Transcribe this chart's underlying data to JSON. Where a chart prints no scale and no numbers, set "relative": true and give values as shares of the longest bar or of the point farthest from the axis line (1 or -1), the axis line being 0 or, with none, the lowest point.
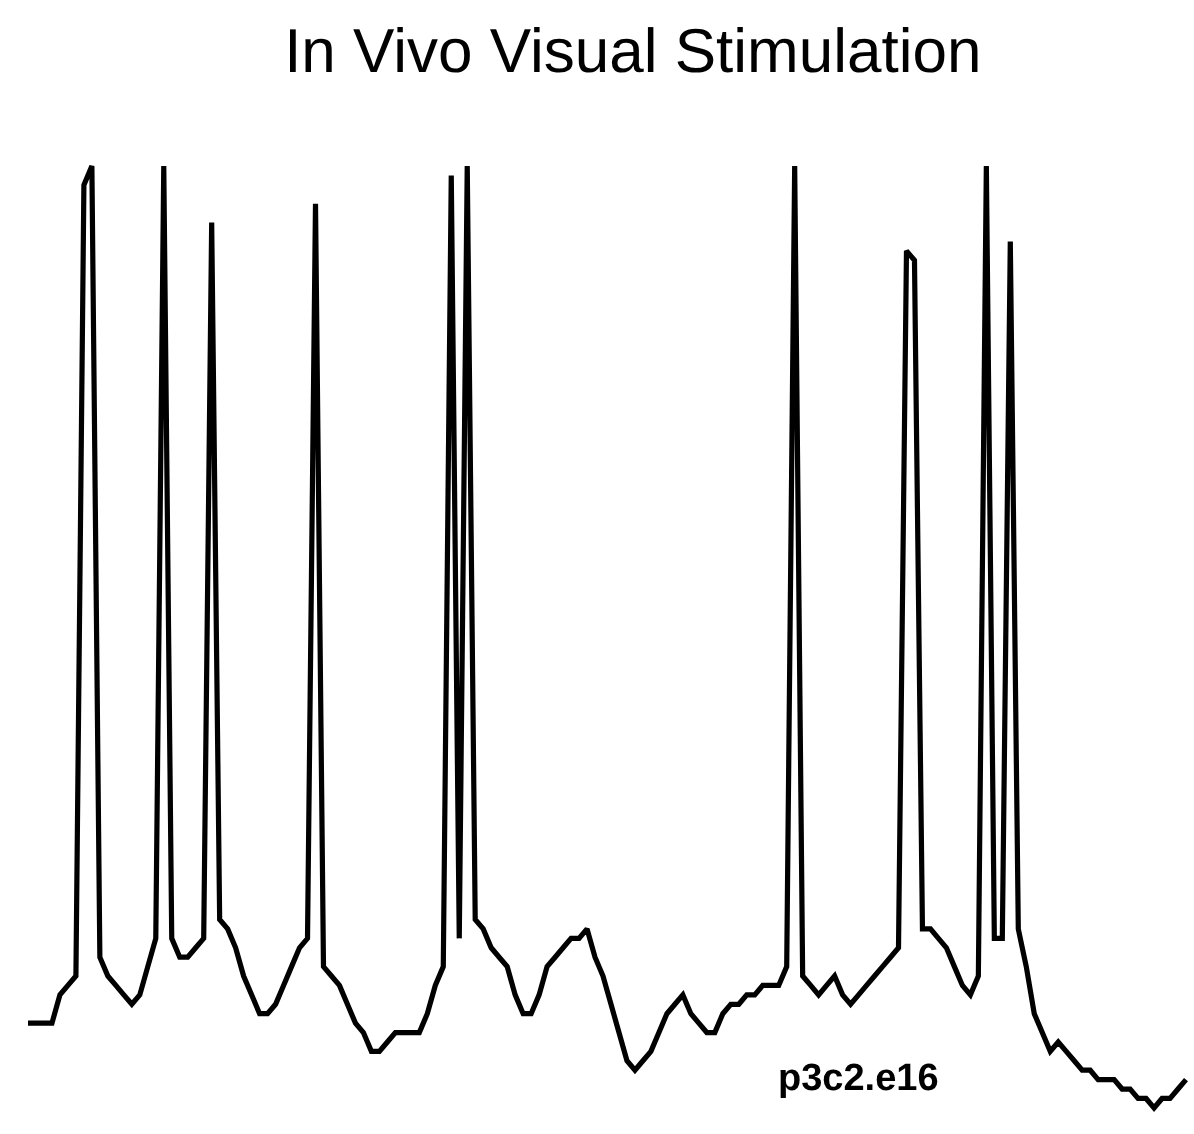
{
  "chart_data": {
    "type": "line",
    "title": "In Vivo Visual Stimulation",
    "relative": true,
    "categories": [
      null,
      null,
      null,
      null,
      null,
      null,
      null,
      null,
      null,
      null,
      null,
      null,
      null,
      null,
      null,
      null,
      null,
      null,
      null,
      null,
      null,
      null,
      null,
      null,
      null,
      null,
      null,
      null,
      null,
      null,
      null,
      null,
      null,
      null,
      null,
      null,
      null,
      null,
      null,
      null,
      null,
      null,
      null,
      null,
      null,
      null,
      null,
      null,
      null,
      null,
      null,
      null,
      null,
      null,
      null,
      null,
      null,
      null,
      null,
      null,
      null,
      null,
      null,
      null,
      null,
      null,
      null,
      null,
      null,
      null,
      null,
      null,
      null,
      null,
      null,
      null,
      null,
      null,
      null,
      null,
      null,
      null,
      null,
      null,
      null,
      null,
      null,
      null,
      null,
      null,
      null,
      null,
      null,
      null,
      null,
      null,
      null,
      null,
      null,
      null,
      null,
      null,
      null,
      null,
      null,
      null,
      null,
      null,
      null,
      null,
      null,
      null,
      null,
      null,
      null,
      null,
      null,
      null,
      null,
      null,
      null,
      null,
      null,
      null,
      null,
      null,
      null,
      null,
      null,
      null,
      null,
      null,
      null,
      null,
      null,
      null,
      null,
      null,
      null,
      null,
      null,
      null,
      null,
      null,
      null,
      null
    ],
    "series": [
      {
        "color": "#000000",
        "values": [
          0.09,
          0.09,
          0.09,
          0.09,
          0.12,
          0.13,
          0.14,
          0.98,
          1,
          0.16,
          0.14,
          0.13,
          0.12,
          0.11,
          0.12,
          0.15,
          0.18,
          1,
          0.18,
          0.16,
          0.16,
          0.17,
          0.18,
          0.94,
          0.2,
          0.19,
          0.17,
          0.14,
          0.12,
          0.1,
          0.1,
          0.11,
          0.13,
          0.15,
          0.17,
          0.18,
          0.96,
          0.15,
          0.14,
          0.13,
          0.11,
          0.09,
          0.08,
          0.06,
          0.06,
          0.07,
          0.08,
          0.08,
          0.08,
          0.08,
          0.1,
          0.13,
          0.15,
          0.99,
          0.18,
          1,
          0.2,
          0.19,
          0.17,
          0.16,
          0.15,
          0.12,
          0.1,
          0.1,
          0.12,
          0.15,
          0.16,
          0.17,
          0.18,
          0.18,
          0.19,
          0.16,
          0.14,
          0.11,
          0.08,
          0.05,
          0.04,
          0.05,
          0.06,
          0.08,
          0.1,
          0.11,
          0.12,
          0.1,
          0.09,
          0.08,
          0.08,
          0.1,
          0.11,
          0.11,
          0.12,
          0.12,
          0.13,
          0.13,
          0.13,
          0.15,
          1,
          0.14,
          0.13,
          0.12,
          0.13,
          0.14,
          0.12,
          0.11,
          0.12,
          0.13,
          0.14,
          0.15,
          0.16,
          0.17,
          0.91,
          0.9,
          0.19,
          0.19,
          0.18,
          0.17,
          0.15,
          0.13,
          0.12,
          0.14,
          1,
          0.18,
          0.18,
          0.92,
          0.19,
          0.15,
          0.1,
          0.08,
          0.06,
          0.07,
          0.06,
          0.05,
          0.04,
          0.04,
          0.03,
          0.03,
          0.03,
          0.02,
          0.02,
          0.01,
          0.01,
          0,
          0.01,
          0.01,
          0.02,
          0.03
        ]
      }
    ],
    "annotations": [
      "p3c2.e16"
    ],
    "line_style": "solid",
    "marker": "none"
  }
}
